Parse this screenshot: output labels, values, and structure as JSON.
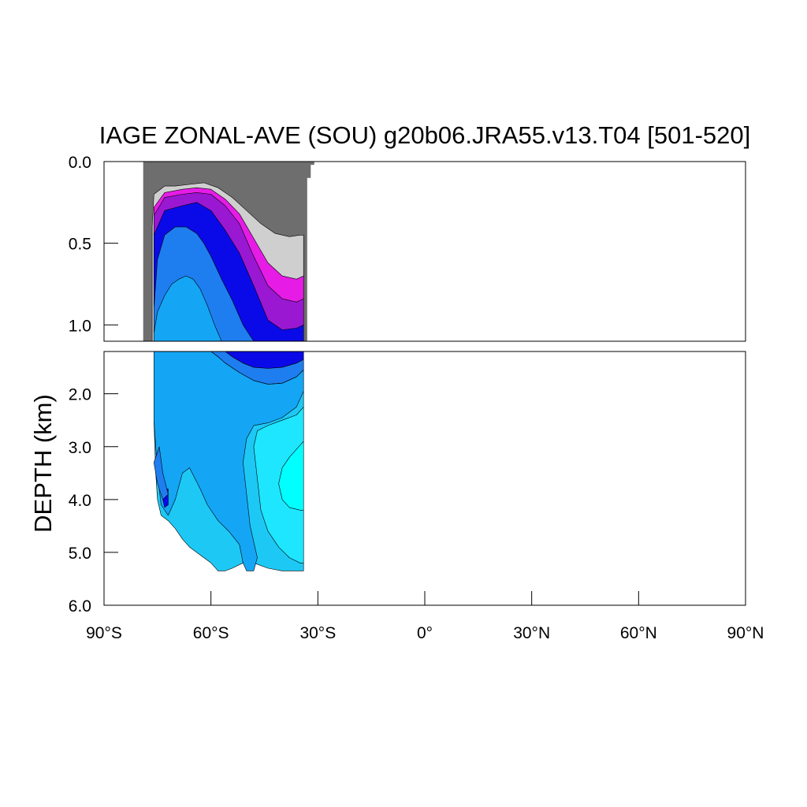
{
  "chart_data": {
    "type": "heatmap",
    "subtype": "filled-contour depth-latitude section",
    "title": "IAGE ZONAL-AVE (SOU) g20b06.JRA55.v13.T04 [501-520]",
    "xlabel": "",
    "ylabel": "DEPTH (km)",
    "xlim": [
      -90,
      90
    ],
    "x_ticks": [
      -90,
      -60,
      -30,
      0,
      30,
      60,
      90
    ],
    "x_tick_labels": [
      "90°S",
      "60°S",
      "30°S",
      "0°",
      "30°N",
      "60°N",
      "90°N"
    ],
    "upper_panel": {
      "ylim": [
        0,
        1.1
      ],
      "y_ticks": [
        0,
        0.5,
        1.0
      ],
      "y_tick_labels": [
        "0.0",
        "0.5",
        "1.0"
      ]
    },
    "lower_panel": {
      "ylim": [
        1.2,
        6.0
      ],
      "y_ticks": [
        2,
        3,
        4,
        5,
        6
      ],
      "y_tick_labels": [
        "2.0",
        "3.0",
        "4.0",
        "5.0",
        "6.0"
      ]
    },
    "grid": false,
    "legend": "none",
    "data_extent_lat": [
      -78,
      -34
    ],
    "level_colors": {
      "missing": "#6e6e6e",
      "lowest": "#cfcfcf",
      "level1": "#e61ce6",
      "level2": "#9a18d2",
      "level3": "#0a0ae8",
      "level4": "#1e7ef0",
      "level5": "#14a6f5",
      "level6": "#1ec8f5",
      "level7": "#1ee6ff",
      "level8": "#00ffff"
    },
    "fields": [
      {
        "name": "missing",
        "color": "#6e6e6e",
        "polygon": [
          [
            -79,
            0
          ],
          [
            -31,
            0
          ],
          [
            -31,
            0.02
          ],
          [
            -32,
            0.02
          ],
          [
            -32,
            0.1
          ],
          [
            -33,
            0.1
          ],
          [
            -33,
            1.1
          ],
          [
            -79,
            1.1
          ]
        ]
      },
      {
        "name": "lowest",
        "color": "#cfcfcf",
        "polygon": [
          [
            -76.5,
            1.1
          ],
          [
            -76.5,
            0.4
          ],
          [
            -76,
            0.2
          ],
          [
            -73,
            0.15
          ],
          [
            -70,
            0.15
          ],
          [
            -66,
            0.14
          ],
          [
            -62,
            0.13
          ],
          [
            -58,
            0.16
          ],
          [
            -54,
            0.22
          ],
          [
            -50,
            0.3
          ],
          [
            -46,
            0.38
          ],
          [
            -42,
            0.44
          ],
          [
            -38,
            0.46
          ],
          [
            -35,
            0.45
          ],
          [
            -34,
            0.45
          ],
          [
            -34,
            0.52
          ],
          [
            -34,
            1.1
          ]
        ]
      },
      {
        "name": "level1",
        "color": "#e61ce6",
        "polygon": [
          [
            -76,
            1.1
          ],
          [
            -76,
            0.28
          ],
          [
            -73,
            0.19
          ],
          [
            -68,
            0.17
          ],
          [
            -64,
            0.16
          ],
          [
            -60,
            0.17
          ],
          [
            -56,
            0.23
          ],
          [
            -52,
            0.32
          ],
          [
            -48,
            0.47
          ],
          [
            -44,
            0.62
          ],
          [
            -40,
            0.7
          ],
          [
            -36,
            0.72
          ],
          [
            -34,
            0.7
          ],
          [
            -34,
            1.1
          ]
        ]
      },
      {
        "name": "level2",
        "color": "#9a18d2",
        "polygon": [
          [
            -76,
            1.1
          ],
          [
            -76,
            0.33
          ],
          [
            -73,
            0.22
          ],
          [
            -68,
            0.2
          ],
          [
            -64,
            0.19
          ],
          [
            -60,
            0.2
          ],
          [
            -56,
            0.27
          ],
          [
            -52,
            0.38
          ],
          [
            -48,
            0.58
          ],
          [
            -44,
            0.76
          ],
          [
            -40,
            0.84
          ],
          [
            -36,
            0.86
          ],
          [
            -34,
            0.84
          ],
          [
            -34,
            1.1
          ]
        ]
      },
      {
        "name": "level3",
        "color": "#0a0ae8",
        "polygon": [
          [
            -76,
            1.1
          ],
          [
            -76,
            0.45
          ],
          [
            -73,
            0.3
          ],
          [
            -68,
            0.27
          ],
          [
            -64,
            0.25
          ],
          [
            -60,
            0.3
          ],
          [
            -56,
            0.42
          ],
          [
            -52,
            0.56
          ],
          [
            -48,
            0.76
          ],
          [
            -44,
            0.97
          ],
          [
            -40,
            1.03
          ],
          [
            -36,
            1.02
          ],
          [
            -34,
            1.0
          ],
          [
            -34,
            1.1
          ]
        ]
      },
      {
        "name": "level4",
        "color": "#1e7ef0",
        "polygon": [
          [
            -76,
            1.1
          ],
          [
            -76,
            0.9
          ],
          [
            -75,
            0.6
          ],
          [
            -73,
            0.45
          ],
          [
            -70,
            0.4
          ],
          [
            -67,
            0.4
          ],
          [
            -64,
            0.44
          ],
          [
            -62,
            0.5
          ],
          [
            -60,
            0.58
          ],
          [
            -57,
            0.72
          ],
          [
            -54,
            0.85
          ],
          [
            -51,
            1.0
          ],
          [
            -48,
            1.1
          ]
        ]
      },
      {
        "name": "level5",
        "color": "#14a6f5",
        "polygon": [
          [
            -76,
            1.1
          ],
          [
            -76,
            1.05
          ],
          [
            -75,
            0.92
          ],
          [
            -73,
            0.82
          ],
          [
            -71,
            0.75
          ],
          [
            -69,
            0.72
          ],
          [
            -67,
            0.7
          ],
          [
            -65,
            0.72
          ],
          [
            -63,
            0.78
          ],
          [
            -61,
            0.88
          ],
          [
            -59,
            1.0
          ],
          [
            -57,
            1.1
          ]
        ]
      },
      {
        "name": "deep-level3",
        "color": "#0a0ae8",
        "polygon": [
          [
            -56,
            1.2
          ],
          [
            -34,
            1.2
          ],
          [
            -34,
            1.35
          ],
          [
            -36,
            1.42
          ],
          [
            -40,
            1.5
          ],
          [
            -44,
            1.52
          ],
          [
            -48,
            1.5
          ],
          [
            -51,
            1.42
          ],
          [
            -54,
            1.3
          ]
        ]
      },
      {
        "name": "deep-level4",
        "color": "#1e7ef0",
        "polygon": [
          [
            -60,
            1.2
          ],
          [
            -56,
            1.2
          ],
          [
            -54,
            1.3
          ],
          [
            -51,
            1.42
          ],
          [
            -48,
            1.5
          ],
          [
            -44,
            1.52
          ],
          [
            -40,
            1.5
          ],
          [
            -36,
            1.42
          ],
          [
            -34,
            1.35
          ],
          [
            -34,
            1.55
          ],
          [
            -36,
            1.68
          ],
          [
            -40,
            1.8
          ],
          [
            -44,
            1.82
          ],
          [
            -48,
            1.75
          ],
          [
            -52,
            1.6
          ],
          [
            -56,
            1.42
          ],
          [
            -58,
            1.3
          ]
        ]
      },
      {
        "name": "deep-level6-body",
        "color": "#1ec8f5",
        "polygon": [
          [
            -76,
            1.2
          ],
          [
            -60,
            1.2
          ],
          [
            -58,
            1.3
          ],
          [
            -56,
            1.42
          ],
          [
            -52,
            1.6
          ],
          [
            -48,
            1.75
          ],
          [
            -44,
            1.82
          ],
          [
            -40,
            1.8
          ],
          [
            -36,
            1.68
          ],
          [
            -34,
            1.55
          ],
          [
            -34,
            5.35
          ],
          [
            -38,
            5.35
          ],
          [
            -40,
            5.35
          ],
          [
            -44,
            5.3
          ],
          [
            -48,
            5.2
          ],
          [
            -51,
            5.2
          ],
          [
            -54,
            5.3
          ],
          [
            -56,
            5.35
          ],
          [
            -58,
            5.35
          ],
          [
            -60,
            5.2
          ],
          [
            -63,
            5.05
          ],
          [
            -66,
            4.9
          ],
          [
            -68,
            4.75
          ],
          [
            -70,
            4.55
          ],
          [
            -72,
            4.4
          ],
          [
            -74,
            4.3
          ],
          [
            -75,
            4.0
          ],
          [
            -75.5,
            3.5
          ],
          [
            -76,
            2.5
          ]
        ]
      },
      {
        "name": "deep-level5",
        "color": "#14a6f5",
        "polygon": [
          [
            -76,
            1.2
          ],
          [
            -60,
            1.2
          ],
          [
            -58,
            1.3
          ],
          [
            -56,
            1.42
          ],
          [
            -52,
            1.6
          ],
          [
            -48,
            1.75
          ],
          [
            -44,
            1.82
          ],
          [
            -40,
            1.8
          ],
          [
            -36,
            1.68
          ],
          [
            -34,
            1.55
          ],
          [
            -34,
            1.95
          ],
          [
            -36,
            2.25
          ],
          [
            -40,
            2.45
          ],
          [
            -44,
            2.55
          ],
          [
            -48,
            2.6
          ],
          [
            -50,
            2.85
          ],
          [
            -51,
            3.3
          ],
          [
            -50,
            3.9
          ],
          [
            -49,
            4.5
          ],
          [
            -47,
            5.1
          ],
          [
            -48,
            5.35
          ],
          [
            -50,
            5.35
          ],
          [
            -51,
            5.2
          ],
          [
            -52,
            4.85
          ],
          [
            -55,
            4.6
          ],
          [
            -58,
            4.4
          ],
          [
            -61,
            4.1
          ],
          [
            -63,
            3.8
          ],
          [
            -66,
            3.4
          ],
          [
            -68,
            3.5
          ],
          [
            -70,
            4.0
          ],
          [
            -72,
            4.3
          ],
          [
            -74,
            4.1
          ],
          [
            -75,
            3.5
          ],
          [
            -75.5,
            3.0
          ],
          [
            -76,
            2.5
          ]
        ]
      },
      {
        "name": "deep-level7",
        "color": "#1ee6ff",
        "polygon": [
          [
            -34,
            2.25
          ],
          [
            -36,
            2.4
          ],
          [
            -40,
            2.5
          ],
          [
            -44,
            2.6
          ],
          [
            -47,
            2.7
          ],
          [
            -48,
            3.0
          ],
          [
            -47,
            3.6
          ],
          [
            -46,
            4.2
          ],
          [
            -44,
            4.6
          ],
          [
            -41,
            4.9
          ],
          [
            -38,
            5.1
          ],
          [
            -35,
            5.2
          ],
          [
            -34,
            5.2
          ]
        ]
      },
      {
        "name": "deep-level8",
        "color": "#00ffff",
        "polygon": [
          [
            -34,
            2.9
          ],
          [
            -36,
            3.05
          ],
          [
            -38,
            3.2
          ],
          [
            -40,
            3.4
          ],
          [
            -41,
            3.7
          ],
          [
            -40,
            4.0
          ],
          [
            -38,
            4.15
          ],
          [
            -35,
            4.2
          ],
          [
            -34,
            4.2
          ]
        ]
      },
      {
        "name": "deep-level3-patch",
        "color": "#0a0ae8",
        "polygon": [
          [
            -73.5,
            3.8
          ],
          [
            -72,
            3.8
          ],
          [
            -72,
            4.1
          ],
          [
            -73,
            4.15
          ],
          [
            -73.5,
            4.0
          ]
        ]
      },
      {
        "name": "deep-level4-patch",
        "color": "#1e7ef0",
        "polygon": [
          [
            -76,
            3.3
          ],
          [
            -74.5,
            3.0
          ],
          [
            -73.5,
            3.5
          ],
          [
            -72,
            3.9
          ],
          [
            -73.5,
            4.0
          ],
          [
            -75,
            3.7
          ]
        ]
      }
    ]
  }
}
